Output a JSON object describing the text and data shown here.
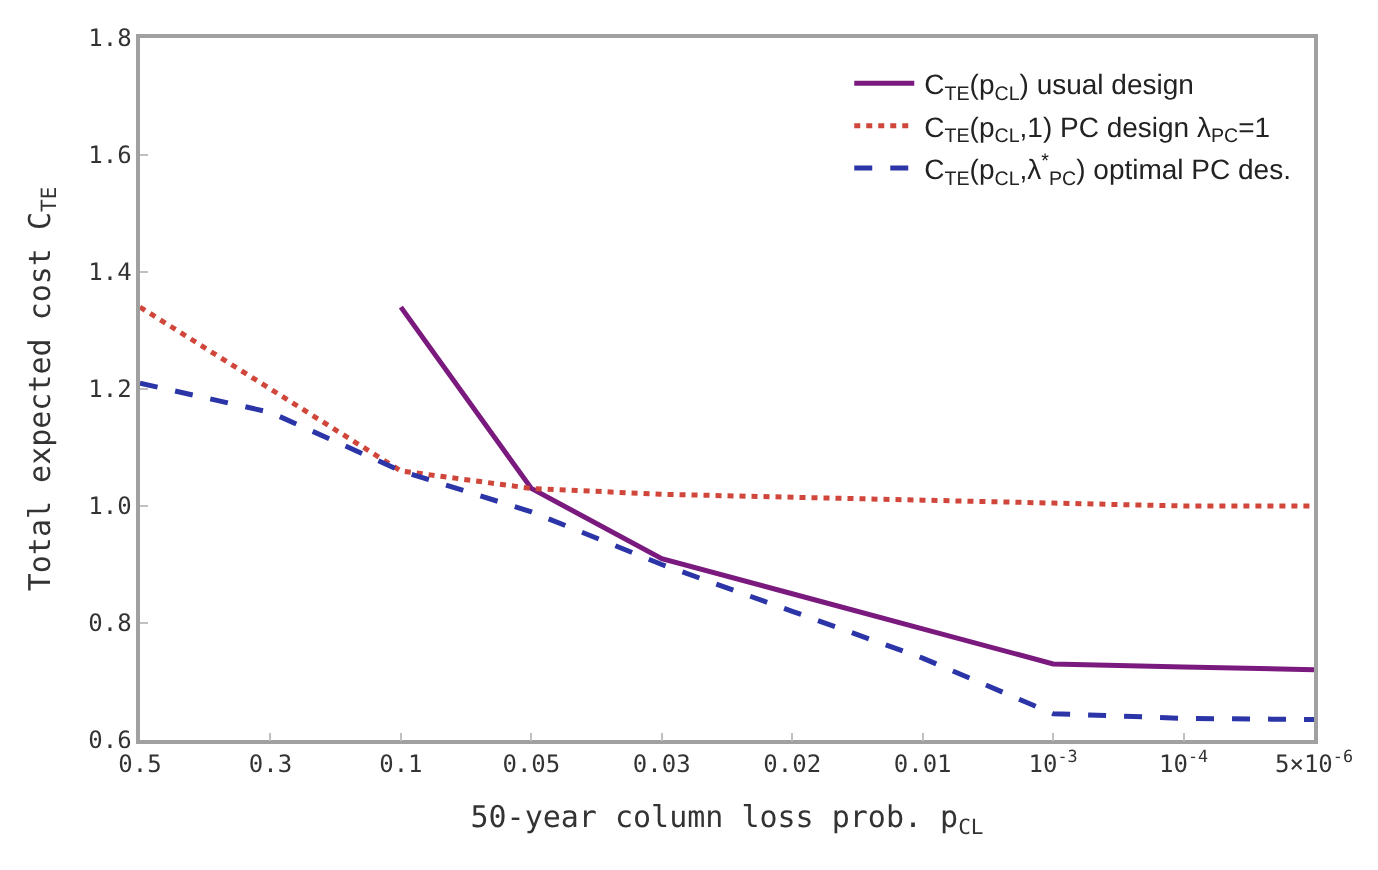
{
  "chart_data": {
    "type": "line",
    "xlabel": "50-year column loss prob. p$_{CL}$",
    "ylabel": "Total expected cost C$_{TE}$",
    "categories": [
      "0.5",
      "0.3",
      "0.1",
      "0.05",
      "0.03",
      "0.02",
      "0.01",
      "10$^{-3}$",
      "10$^{-4}$",
      "5×10$^{-6}$"
    ],
    "ylim": [
      0.6,
      1.8
    ],
    "yticks": [
      {
        "value": 0.6,
        "label": "0.6"
      },
      {
        "value": 0.8,
        "label": "0.8"
      },
      {
        "value": 1.0,
        "label": "1.0"
      },
      {
        "value": 1.2,
        "label": "1.2"
      },
      {
        "value": 1.4,
        "label": "1.4"
      },
      {
        "value": 1.6,
        "label": "1.6"
      },
      {
        "value": 1.8,
        "label": "1.8"
      }
    ],
    "series": [
      {
        "name": "C$_{TE}$(p$_{CL}$) usual design",
        "color": "#7b1a7e",
        "line_style": "solid",
        "values": [
          null,
          null,
          1.34,
          1.03,
          0.91,
          0.85,
          0.79,
          0.73,
          0.725,
          0.72
        ]
      },
      {
        "name": "C$_{TE}$(p$_{CL}$,1) PC design λ$_{PC}$=1",
        "color": "#d0463a",
        "line_style": "dotted",
        "values": [
          1.34,
          1.2,
          1.06,
          1.03,
          1.02,
          1.015,
          1.01,
          1.005,
          1.0,
          1.0
        ]
      },
      {
        "name": "C$_{TE}$(p$_{CL}$,λ$^{*}$$_{PC}$) optimal PC des.",
        "color": "#2b35a8",
        "line_style": "dashed",
        "values": [
          1.21,
          1.16,
          1.06,
          0.99,
          0.9,
          0.82,
          0.74,
          0.645,
          0.637,
          0.635
        ]
      }
    ],
    "legend": "top right",
    "marker": "none"
  }
}
